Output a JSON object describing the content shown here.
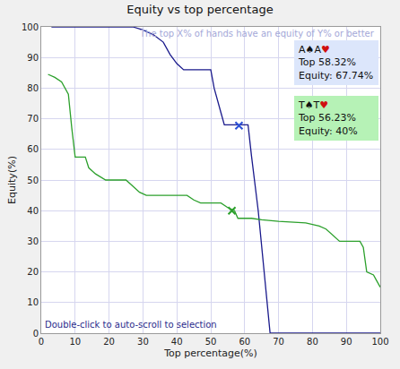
{
  "chart_data": {
    "type": "line",
    "title": "Equity vs top percentage",
    "x_label": "Top percentage(%)",
    "y_label": "Equity(%)",
    "xlim": [
      0,
      100
    ],
    "ylim": [
      0,
      100
    ],
    "xticks": [
      0,
      10,
      20,
      30,
      40,
      50,
      60,
      70,
      80,
      90,
      100
    ],
    "yticks": [
      0,
      10,
      20,
      30,
      40,
      50,
      60,
      70,
      80,
      90,
      100
    ],
    "grid": true,
    "annotations": [
      "The top X% of hands have an equity of Y% or better",
      "Double-click to auto-scroll to selection"
    ],
    "series": [
      {
        "name": "A♠A♥",
        "color": "#1a1a8c",
        "x": [
          3,
          27,
          30,
          33,
          36,
          38,
          40,
          42,
          50,
          51,
          53,
          54,
          61,
          62,
          64,
          66,
          67.5,
          100
        ],
        "values": [
          100,
          100,
          99,
          97.5,
          95,
          91,
          88,
          86,
          86,
          80,
          72,
          68,
          68,
          58,
          40,
          17,
          0,
          0
        ],
        "selection": {
          "x": 58.32,
          "y": 67.74,
          "marker": "x",
          "color": "#2a4fd6",
          "label": [
            "Top 58.32%",
            "Equity: 67.74%"
          ]
        }
      },
      {
        "name": "T♠T♥",
        "color": "#2ca02c",
        "x": [
          2,
          4,
          6,
          8,
          9,
          10,
          13,
          14,
          16,
          19,
          25,
          27,
          29,
          31,
          43,
          45,
          47,
          53,
          55,
          57,
          58,
          62,
          65,
          70,
          78,
          80,
          82,
          84,
          86,
          88,
          94,
          95,
          96,
          98,
          99,
          100
        ],
        "values": [
          84.5,
          83.5,
          82,
          78,
          67,
          57.5,
          57.5,
          54,
          52,
          50,
          50,
          48,
          46,
          45,
          45,
          43.5,
          42.5,
          42.5,
          41,
          40,
          37.5,
          37.5,
          37,
          36.5,
          36,
          35.5,
          35,
          34,
          32,
          30,
          30,
          28,
          20,
          19,
          17,
          15
        ],
        "selection": {
          "x": 56.23,
          "y": 40,
          "marker": "x",
          "color": "#2ca02c",
          "label": [
            "Top 56.23%",
            "Equity: 40%"
          ]
        }
      }
    ]
  }
}
